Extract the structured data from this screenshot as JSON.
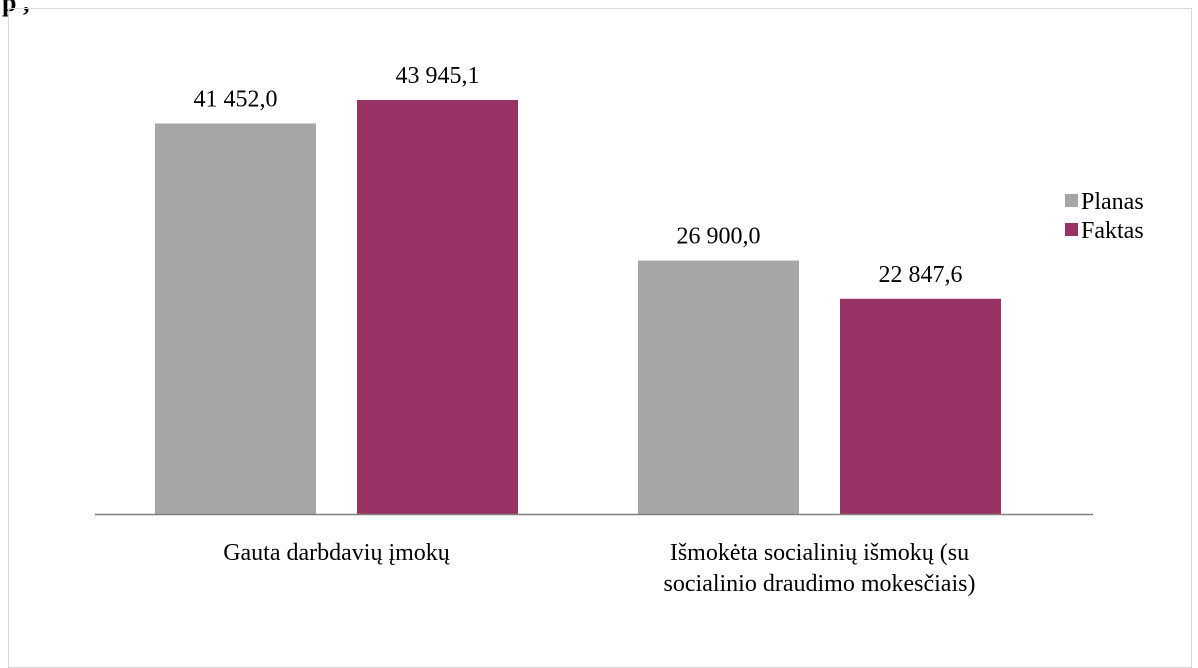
{
  "page_title": "p                              ,",
  "chart_data": {
    "type": "bar",
    "categories": [
      [
        "Gauta darbdavių įmokų"
      ],
      [
        "Išmokėta socialinių išmokų (su",
        "socialinio draudimo mokesčiais)"
      ]
    ],
    "series": [
      {
        "name": "Planas",
        "color": "#a6a6a6",
        "values": [
          41452.0,
          26900.0
        ],
        "labels": [
          "41 452,0",
          "26 900,0"
        ]
      },
      {
        "name": "Faktas",
        "color": "#993366",
        "values": [
          43945.1,
          22847.6
        ],
        "labels": [
          "43 945,1",
          "22 847,6"
        ]
      }
    ],
    "ylim": [
      0,
      50000
    ],
    "grid": false,
    "legend_position": "right"
  }
}
